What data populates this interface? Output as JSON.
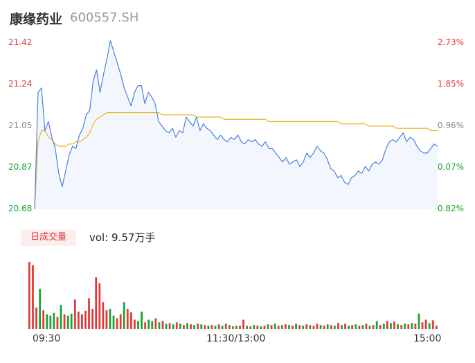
{
  "header": {
    "name": "康缘药业",
    "code": "600557.SH"
  },
  "colors": {
    "up": "#e03a3a",
    "down": "#19a532",
    "neutral": "#888888",
    "price_line": "#4a7fe0",
    "avg_line": "#f0b020"
  },
  "chart_data": {
    "type": "line",
    "price_axis": {
      "ticks": [
        "21.42",
        "21.24",
        "21.05",
        "20.87",
        "20.68"
      ],
      "ylim": [
        20.68,
        21.42
      ]
    },
    "pct_axis": {
      "ticks": [
        "2.73%",
        "1.85%",
        "0.96%",
        "0.07%",
        "-0.82%"
      ]
    },
    "x_ticks": [
      "09:30",
      "11:30/13:00",
      "15:00"
    ],
    "series": [
      {
        "values": [
          20.68,
          21.2,
          21.22,
          21.03,
          21.07,
          21.0,
          20.95,
          20.84,
          20.78,
          20.85,
          20.92,
          20.96,
          20.95,
          21.01,
          21.04,
          21.1,
          21.12,
          21.25,
          21.3,
          21.2,
          21.28,
          21.35,
          21.43,
          21.38,
          21.33,
          21.28,
          21.22,
          21.18,
          21.14,
          21.2,
          21.23,
          21.23,
          21.15,
          21.2,
          21.18,
          21.15,
          21.07,
          21.05,
          21.03,
          21.02,
          21.04,
          21.0,
          21.03,
          21.02,
          21.09,
          21.07,
          21.05,
          21.09,
          21.03,
          21.06,
          21.04,
          21.03,
          21.01,
          20.99,
          21.01,
          20.99,
          20.98,
          21.0,
          20.99,
          21.01,
          20.98,
          20.97,
          20.99,
          20.98,
          20.99,
          20.97,
          20.96,
          20.98,
          20.95,
          20.95,
          20.93,
          20.91,
          20.89,
          20.91,
          20.88,
          20.89,
          20.9,
          20.87,
          20.89,
          20.93,
          20.91,
          20.93,
          20.96,
          20.94,
          20.93,
          20.9,
          20.86,
          20.85,
          20.82,
          20.83,
          20.8,
          20.79,
          20.82,
          20.83,
          20.85,
          20.84,
          20.87,
          20.85,
          20.88,
          20.89,
          20.88,
          20.9,
          20.95,
          20.98,
          20.99,
          20.98,
          21.0,
          21.02,
          20.98,
          21.0,
          20.99,
          20.96,
          20.94,
          20.93,
          20.93,
          20.95,
          20.97,
          20.96
        ]
      },
      {
        "values": [
          20.68,
          20.98,
          21.03,
          21.03,
          21.0,
          20.99,
          20.97,
          20.96,
          20.96,
          20.96,
          20.97,
          20.97,
          20.98,
          20.98,
          20.99,
          21.0,
          21.02,
          21.06,
          21.08,
          21.09,
          21.1,
          21.11,
          21.11,
          21.11,
          21.11,
          21.11,
          21.11,
          21.11,
          21.11,
          21.11,
          21.11,
          21.11,
          21.11,
          21.11,
          21.11,
          21.11,
          21.11,
          21.1,
          21.1,
          21.1,
          21.1,
          21.1,
          21.1,
          21.1,
          21.1,
          21.1,
          21.1,
          21.09,
          21.09,
          21.09,
          21.09,
          21.09,
          21.09,
          21.09,
          21.09,
          21.08,
          21.08,
          21.08,
          21.08,
          21.08,
          21.08,
          21.08,
          21.08,
          21.08,
          21.08,
          21.08,
          21.08,
          21.08,
          21.07,
          21.07,
          21.07,
          21.07,
          21.07,
          21.07,
          21.07,
          21.07,
          21.07,
          21.07,
          21.07,
          21.07,
          21.07,
          21.07,
          21.07,
          21.07,
          21.07,
          21.07,
          21.07,
          21.07,
          21.07,
          21.06,
          21.06,
          21.06,
          21.06,
          21.06,
          21.06,
          21.06,
          21.06,
          21.05,
          21.05,
          21.05,
          21.05,
          21.05,
          21.05,
          21.05,
          21.05,
          21.04,
          21.04,
          21.04,
          21.04,
          21.04,
          21.04,
          21.04,
          21.04,
          21.04,
          21.04,
          21.03,
          21.03,
          21.03
        ]
      }
    ],
    "volume": {
      "label": "日成交量",
      "summary_prefix": "vol: ",
      "summary_value": "9.57万手",
      "bars": [
        {
          "v": 100,
          "d": "up"
        },
        {
          "v": 95,
          "d": "up"
        },
        {
          "v": 32,
          "d": "up"
        },
        {
          "v": 60,
          "d": "down"
        },
        {
          "v": 28,
          "d": "up"
        },
        {
          "v": 22,
          "d": "down"
        },
        {
          "v": 20,
          "d": "down"
        },
        {
          "v": 24,
          "d": "down"
        },
        {
          "v": 18,
          "d": "up"
        },
        {
          "v": 36,
          "d": "down"
        },
        {
          "v": 22,
          "d": "up"
        },
        {
          "v": 20,
          "d": "down"
        },
        {
          "v": 23,
          "d": "down"
        },
        {
          "v": 44,
          "d": "up"
        },
        {
          "v": 26,
          "d": "up"
        },
        {
          "v": 22,
          "d": "up"
        },
        {
          "v": 27,
          "d": "up"
        },
        {
          "v": 46,
          "d": "up"
        },
        {
          "v": 30,
          "d": "up"
        },
        {
          "v": 77,
          "d": "up"
        },
        {
          "v": 68,
          "d": "up"
        },
        {
          "v": 40,
          "d": "up"
        },
        {
          "v": 28,
          "d": "up"
        },
        {
          "v": 30,
          "d": "down"
        },
        {
          "v": 20,
          "d": "down"
        },
        {
          "v": 16,
          "d": "up"
        },
        {
          "v": 22,
          "d": "up"
        },
        {
          "v": 40,
          "d": "down"
        },
        {
          "v": 30,
          "d": "up"
        },
        {
          "v": 25,
          "d": "up"
        },
        {
          "v": 14,
          "d": "up"
        },
        {
          "v": 12,
          "d": "down"
        },
        {
          "v": 26,
          "d": "down"
        },
        {
          "v": 10,
          "d": "up"
        },
        {
          "v": 14,
          "d": "down"
        },
        {
          "v": 12,
          "d": "down"
        },
        {
          "v": 16,
          "d": "up"
        },
        {
          "v": 10,
          "d": "down"
        },
        {
          "v": 12,
          "d": "up"
        },
        {
          "v": 8,
          "d": "down"
        },
        {
          "v": 9,
          "d": "up"
        },
        {
          "v": 7,
          "d": "down"
        },
        {
          "v": 10,
          "d": "up"
        },
        {
          "v": 8,
          "d": "down"
        },
        {
          "v": 6,
          "d": "up"
        },
        {
          "v": 9,
          "d": "down"
        },
        {
          "v": 7,
          "d": "up"
        },
        {
          "v": 6,
          "d": "down"
        },
        {
          "v": 8,
          "d": "up"
        },
        {
          "v": 7,
          "d": "down"
        },
        {
          "v": 6,
          "d": "up"
        },
        {
          "v": 5,
          "d": "down"
        },
        {
          "v": 6,
          "d": "up"
        },
        {
          "v": 5,
          "d": "down"
        },
        {
          "v": 7,
          "d": "up"
        },
        {
          "v": 5,
          "d": "down"
        },
        {
          "v": 8,
          "d": "up"
        },
        {
          "v": 6,
          "d": "down"
        },
        {
          "v": 4,
          "d": "up"
        },
        {
          "v": 5,
          "d": "down"
        },
        {
          "v": 5,
          "d": "up"
        },
        {
          "v": 14,
          "d": "up"
        },
        {
          "v": 5,
          "d": "down"
        },
        {
          "v": 4,
          "d": "up"
        },
        {
          "v": 6,
          "d": "down"
        },
        {
          "v": 5,
          "d": "up"
        },
        {
          "v": 4,
          "d": "down"
        },
        {
          "v": 5,
          "d": "up"
        },
        {
          "v": 7,
          "d": "down"
        },
        {
          "v": 6,
          "d": "up"
        },
        {
          "v": 8,
          "d": "down"
        },
        {
          "v": 5,
          "d": "up"
        },
        {
          "v": 6,
          "d": "down"
        },
        {
          "v": 7,
          "d": "up"
        },
        {
          "v": 6,
          "d": "down"
        },
        {
          "v": 5,
          "d": "up"
        },
        {
          "v": 8,
          "d": "down"
        },
        {
          "v": 6,
          "d": "up"
        },
        {
          "v": 5,
          "d": "down"
        },
        {
          "v": 7,
          "d": "up"
        },
        {
          "v": 6,
          "d": "down"
        },
        {
          "v": 5,
          "d": "up"
        },
        {
          "v": 8,
          "d": "up"
        },
        {
          "v": 6,
          "d": "down"
        },
        {
          "v": 5,
          "d": "up"
        },
        {
          "v": 7,
          "d": "down"
        },
        {
          "v": 6,
          "d": "up"
        },
        {
          "v": 5,
          "d": "down"
        },
        {
          "v": 9,
          "d": "up"
        },
        {
          "v": 6,
          "d": "down"
        },
        {
          "v": 8,
          "d": "up"
        },
        {
          "v": 5,
          "d": "down"
        },
        {
          "v": 6,
          "d": "up"
        },
        {
          "v": 7,
          "d": "down"
        },
        {
          "v": 5,
          "d": "up"
        },
        {
          "v": 6,
          "d": "down"
        },
        {
          "v": 8,
          "d": "up"
        },
        {
          "v": 5,
          "d": "down"
        },
        {
          "v": 6,
          "d": "up"
        },
        {
          "v": 12,
          "d": "down"
        },
        {
          "v": 6,
          "d": "up"
        },
        {
          "v": 8,
          "d": "down"
        },
        {
          "v": 12,
          "d": "up"
        },
        {
          "v": 9,
          "d": "down"
        },
        {
          "v": 11,
          "d": "up"
        },
        {
          "v": 7,
          "d": "down"
        },
        {
          "v": 6,
          "d": "up"
        },
        {
          "v": 8,
          "d": "down"
        },
        {
          "v": 7,
          "d": "up"
        },
        {
          "v": 9,
          "d": "down"
        },
        {
          "v": 8,
          "d": "up"
        },
        {
          "v": 23,
          "d": "down"
        },
        {
          "v": 10,
          "d": "up"
        },
        {
          "v": 14,
          "d": "up"
        },
        {
          "v": 9,
          "d": "down"
        },
        {
          "v": 13,
          "d": "up"
        },
        {
          "v": 5,
          "d": "up"
        }
      ]
    }
  }
}
